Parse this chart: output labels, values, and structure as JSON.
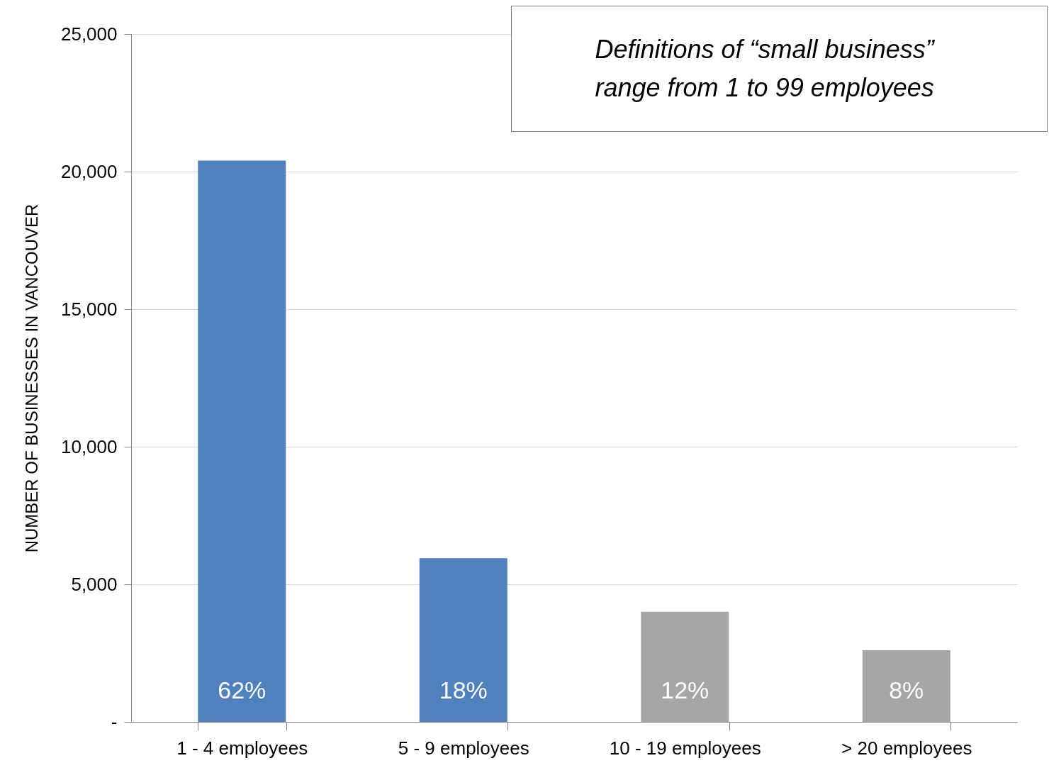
{
  "chart_data": {
    "type": "bar",
    "ylabel": "NUMBER OF BUSINESSES IN VANCOUVER",
    "categories": [
      "1 - 4 employees",
      "5 - 9 employees",
      "10 - 19 employees",
      "> 20 employees"
    ],
    "values": [
      20400,
      5950,
      4000,
      2600
    ],
    "colors": [
      "#4f81bd",
      "#4f81bd",
      "#a6a6a6",
      "#a6a6a6"
    ],
    "ylim": [
      0,
      25000
    ],
    "yticks": [
      {
        "value": 0,
        "label": "-"
      },
      {
        "value": 5000,
        "label": "5,000"
      },
      {
        "value": 10000,
        "label": "10,000"
      },
      {
        "value": 15000,
        "label": "15,000"
      },
      {
        "value": 20000,
        "label": "20,000"
      },
      {
        "value": 25000,
        "label": "25,000"
      }
    ],
    "grid": "y",
    "annotations": [
      "Definitions of “small business” range from 1 to 99 employees",
      {
        "text": "62%",
        "x": "1 - 4 employees",
        "y": 0
      },
      {
        "text": "18%",
        "x": "5 - 9 employees",
        "y": 0
      },
      {
        "text": "12%",
        "x": "10 - 19 employees",
        "y": 0
      },
      {
        "text": "8%",
        "x": "> 20 employees",
        "y": 0
      }
    ]
  }
}
